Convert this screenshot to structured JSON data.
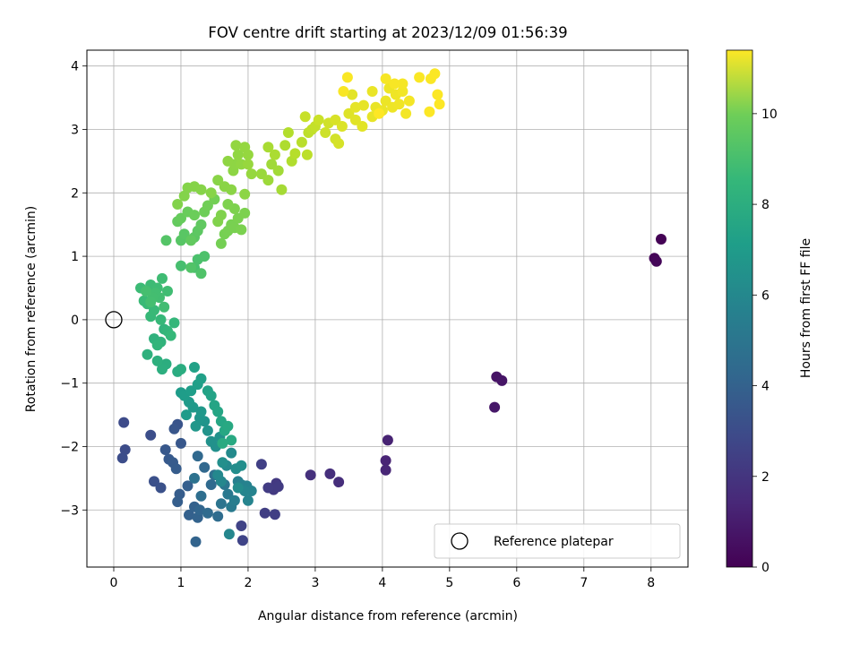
{
  "chart_data": {
    "type": "scatter",
    "title": "FOV centre drift starting at 2023/12/09 01:56:39",
    "xlabel": "Angular distance from reference (arcmin)",
    "ylabel": "Rotation from reference (arcmin)",
    "xlim": [
      -0.4,
      8.55
    ],
    "ylim": [
      -3.9,
      4.25
    ],
    "x_ticks": [
      0,
      1,
      2,
      3,
      4,
      5,
      6,
      7,
      8
    ],
    "y_ticks": [
      -3,
      -2,
      -1,
      0,
      1,
      2,
      3,
      4
    ],
    "grid": true,
    "legend": {
      "location": "lower-right",
      "entries": [
        "Reference platepar"
      ]
    },
    "colorbar": {
      "label": "Hours from first FF file",
      "colormap": "viridis",
      "range": [
        0,
        11.4
      ],
      "ticks": [
        0,
        2,
        4,
        6,
        8,
        10
      ]
    },
    "reference_point": {
      "x": 0,
      "y": 0
    },
    "points": [
      [
        8.15,
        1.27,
        0.05
      ],
      [
        8.05,
        0.97,
        0.1
      ],
      [
        8.08,
        0.92,
        0.15
      ],
      [
        5.7,
        -0.9,
        0.6
      ],
      [
        5.78,
        -0.96,
        0.65
      ],
      [
        5.67,
        -1.38,
        0.7
      ],
      [
        4.08,
        -1.9,
        1.1
      ],
      [
        4.05,
        -2.22,
        1.15
      ],
      [
        4.05,
        -2.37,
        1.2
      ],
      [
        3.35,
        -2.56,
        1.5
      ],
      [
        3.22,
        -2.43,
        1.55
      ],
      [
        2.93,
        -2.45,
        1.6
      ],
      [
        2.42,
        -2.58,
        1.9
      ],
      [
        2.38,
        -2.68,
        1.95
      ],
      [
        2.45,
        -2.63,
        2.0
      ],
      [
        2.3,
        -2.65,
        2.05
      ],
      [
        2.25,
        -3.05,
        2.1
      ],
      [
        2.4,
        -3.07,
        2.15
      ],
      [
        2.2,
        -2.28,
        2.2
      ],
      [
        1.9,
        -3.25,
        2.3
      ],
      [
        1.92,
        -3.48,
        2.35
      ],
      [
        0.15,
        -1.62,
        2.6
      ],
      [
        0.17,
        -2.05,
        2.65
      ],
      [
        0.13,
        -2.18,
        2.7
      ],
      [
        0.55,
        -1.82,
        2.75
      ],
      [
        0.6,
        -2.55,
        2.8
      ],
      [
        0.7,
        -2.65,
        2.85
      ],
      [
        0.95,
        -1.65,
        3.0
      ],
      [
        0.9,
        -1.72,
        3.05
      ],
      [
        1.0,
        -1.95,
        3.1
      ],
      [
        0.77,
        -2.05,
        3.15
      ],
      [
        0.82,
        -2.2,
        3.2
      ],
      [
        0.88,
        -2.25,
        3.25
      ],
      [
        0.93,
        -2.35,
        3.3
      ],
      [
        0.98,
        -2.75,
        3.35
      ],
      [
        0.95,
        -2.87,
        3.4
      ],
      [
        1.1,
        -2.62,
        3.45
      ],
      [
        1.12,
        -3.08,
        3.5
      ],
      [
        1.2,
        -2.95,
        3.55
      ],
      [
        1.25,
        -3.12,
        3.6
      ],
      [
        1.22,
        -3.5,
        3.65
      ],
      [
        1.28,
        -3.0,
        3.7
      ],
      [
        1.35,
        -2.33,
        3.8
      ],
      [
        1.25,
        -2.15,
        3.85
      ],
      [
        1.45,
        -2.6,
        3.9
      ],
      [
        1.4,
        -3.05,
        3.95
      ],
      [
        1.55,
        -3.1,
        4.0
      ],
      [
        1.3,
        -2.78,
        4.1
      ],
      [
        1.5,
        -2.45,
        4.2
      ],
      [
        1.2,
        -2.5,
        4.3
      ],
      [
        1.6,
        -2.9,
        4.4
      ],
      [
        1.65,
        -2.6,
        4.5
      ],
      [
        1.7,
        -2.75,
        4.6
      ],
      [
        1.75,
        -2.95,
        4.7
      ],
      [
        1.8,
        -2.85,
        4.8
      ],
      [
        1.85,
        -2.55,
        4.9
      ],
      [
        1.9,
        -2.6,
        5.0
      ],
      [
        1.98,
        -2.62,
        5.05
      ],
      [
        2.05,
        -2.7,
        5.1
      ],
      [
        2.0,
        -2.85,
        5.15
      ],
      [
        1.95,
        -2.7,
        5.2
      ],
      [
        1.72,
        -3.38,
        5.25
      ],
      [
        1.6,
        -2.55,
        5.3
      ],
      [
        1.55,
        -2.45,
        5.35
      ],
      [
        1.68,
        -2.3,
        5.4
      ],
      [
        1.75,
        -2.1,
        5.45
      ],
      [
        1.85,
        -2.65,
        5.5
      ],
      [
        1.82,
        -2.35,
        5.55
      ],
      [
        1.9,
        -2.3,
        5.6
      ],
      [
        1.62,
        -2.25,
        5.65
      ],
      [
        1.52,
        -2.0,
        5.7
      ],
      [
        1.45,
        -1.92,
        5.75
      ],
      [
        1.58,
        -1.85,
        5.8
      ],
      [
        1.4,
        -1.75,
        5.85
      ],
      [
        1.35,
        -1.6,
        5.9
      ],
      [
        1.28,
        -1.55,
        5.95
      ],
      [
        1.22,
        -1.68,
        6.0
      ],
      [
        1.3,
        -1.45,
        6.05
      ],
      [
        1.18,
        -1.38,
        6.1
      ],
      [
        1.12,
        -1.3,
        6.15
      ],
      [
        1.08,
        -1.5,
        6.2
      ],
      [
        1.0,
        -1.15,
        6.25
      ],
      [
        1.05,
        -1.2,
        6.3
      ],
      [
        1.15,
        -1.12,
        6.35
      ],
      [
        1.25,
        -1.02,
        6.4
      ],
      [
        1.3,
        -0.93,
        6.45
      ],
      [
        1.2,
        -0.75,
        6.5
      ],
      [
        1.4,
        -1.12,
        6.55
      ],
      [
        1.45,
        -1.2,
        6.6
      ],
      [
        1.5,
        -1.35,
        6.65
      ],
      [
        1.55,
        -1.45,
        6.7
      ],
      [
        1.6,
        -1.6,
        6.75
      ],
      [
        1.65,
        -1.75,
        6.8
      ],
      [
        1.7,
        -1.68,
        6.85
      ],
      [
        1.75,
        -1.9,
        6.9
      ],
      [
        1.62,
        -1.95,
        6.95
      ],
      [
        0.95,
        -0.82,
        7.0
      ],
      [
        1.0,
        -0.78,
        7.05
      ],
      [
        0.78,
        -0.7,
        7.1
      ],
      [
        0.72,
        -0.78,
        7.15
      ],
      [
        0.65,
        -0.65,
        7.2
      ],
      [
        0.5,
        -0.55,
        7.25
      ],
      [
        0.6,
        -0.3,
        7.3
      ],
      [
        0.7,
        -0.35,
        7.35
      ],
      [
        0.75,
        -0.15,
        7.4
      ],
      [
        0.65,
        -0.4,
        7.45
      ],
      [
        0.8,
        -0.18,
        7.5
      ],
      [
        0.9,
        -0.05,
        7.55
      ],
      [
        0.85,
        -0.25,
        7.6
      ],
      [
        0.7,
        0.0,
        7.62
      ],
      [
        0.55,
        0.05,
        7.65
      ],
      [
        0.6,
        0.15,
        7.68
      ],
      [
        0.5,
        0.25,
        7.7
      ],
      [
        0.45,
        0.3,
        7.72
      ],
      [
        0.4,
        0.5,
        7.75
      ],
      [
        0.55,
        0.55,
        7.78
      ],
      [
        0.65,
        0.5,
        7.8
      ],
      [
        0.72,
        0.65,
        7.82
      ],
      [
        0.8,
        0.45,
        7.85
      ],
      [
        0.75,
        0.2,
        7.88
      ],
      [
        0.68,
        0.35,
        7.9
      ],
      [
        0.62,
        0.42,
        7.92
      ],
      [
        0.58,
        0.35,
        7.94
      ],
      [
        0.55,
        0.28,
        7.96
      ],
      [
        0.48,
        0.45,
        7.98
      ],
      [
        1.0,
        0.85,
        8.0
      ],
      [
        1.2,
        0.82,
        8.05
      ],
      [
        1.25,
        0.95,
        8.1
      ],
      [
        1.35,
        1.0,
        8.15
      ],
      [
        1.3,
        0.73,
        8.2
      ],
      [
        1.15,
        0.82,
        8.25
      ],
      [
        0.78,
        1.25,
        8.3
      ],
      [
        1.0,
        1.25,
        8.35
      ],
      [
        1.05,
        1.35,
        8.4
      ],
      [
        1.2,
        1.3,
        8.45
      ],
      [
        1.25,
        1.4,
        8.5
      ],
      [
        1.3,
        1.5,
        8.55
      ],
      [
        1.15,
        1.25,
        8.6
      ],
      [
        0.95,
        1.55,
        8.65
      ],
      [
        1.0,
        1.6,
        8.7
      ],
      [
        1.1,
        1.7,
        8.75
      ],
      [
        1.2,
        1.65,
        8.8
      ],
      [
        1.35,
        1.7,
        8.85
      ],
      [
        1.4,
        1.8,
        8.9
      ],
      [
        1.5,
        1.9,
        8.95
      ],
      [
        1.6,
        1.2,
        8.98
      ],
      [
        1.65,
        1.35,
        9.0
      ],
      [
        1.7,
        1.4,
        9.02
      ],
      [
        1.75,
        1.5,
        9.04
      ],
      [
        1.8,
        1.45,
        9.06
      ],
      [
        1.85,
        1.6,
        9.08
      ],
      [
        1.9,
        1.42,
        9.1
      ],
      [
        1.95,
        1.68,
        9.12
      ],
      [
        1.8,
        1.75,
        9.14
      ],
      [
        1.7,
        1.82,
        9.16
      ],
      [
        1.6,
        1.65,
        9.18
      ],
      [
        1.55,
        1.55,
        9.2
      ],
      [
        0.95,
        1.82,
        9.22
      ],
      [
        1.05,
        1.95,
        9.24
      ],
      [
        1.1,
        2.08,
        9.26
      ],
      [
        1.2,
        2.1,
        9.28
      ],
      [
        1.3,
        2.05,
        9.3
      ],
      [
        1.45,
        2.0,
        9.32
      ],
      [
        1.55,
        2.2,
        9.34
      ],
      [
        1.65,
        2.1,
        9.36
      ],
      [
        1.75,
        2.05,
        9.38
      ],
      [
        1.95,
        1.98,
        9.4
      ],
      [
        1.78,
        2.35,
        9.42
      ],
      [
        1.8,
        2.45,
        9.44
      ],
      [
        1.7,
        2.5,
        9.46
      ],
      [
        1.85,
        2.6,
        9.48
      ],
      [
        1.9,
        2.45,
        9.5
      ],
      [
        1.82,
        2.75,
        9.52
      ],
      [
        1.95,
        2.72,
        9.54
      ],
      [
        2.0,
        2.6,
        9.56
      ],
      [
        2.05,
        2.3,
        9.58
      ],
      [
        2.0,
        2.45,
        9.6
      ],
      [
        2.2,
        2.3,
        9.65
      ],
      [
        2.3,
        2.2,
        9.7
      ],
      [
        2.35,
        2.45,
        9.75
      ],
      [
        2.45,
        2.35,
        9.8
      ],
      [
        2.5,
        2.05,
        9.85
      ],
      [
        2.3,
        2.72,
        9.9
      ],
      [
        2.4,
        2.6,
        9.95
      ],
      [
        2.55,
        2.75,
        10.0
      ],
      [
        2.65,
        2.5,
        10.05
      ],
      [
        2.6,
        2.95,
        10.1
      ],
      [
        2.7,
        2.62,
        10.15
      ],
      [
        2.8,
        2.8,
        10.2
      ],
      [
        2.88,
        2.6,
        10.25
      ],
      [
        2.9,
        2.95,
        10.3
      ],
      [
        2.95,
        3.0,
        10.35
      ],
      [
        3.0,
        3.05,
        10.4
      ],
      [
        2.85,
        3.2,
        10.45
      ],
      [
        3.05,
        3.15,
        10.5
      ],
      [
        3.15,
        2.95,
        10.55
      ],
      [
        3.2,
        3.1,
        10.6
      ],
      [
        3.3,
        2.85,
        10.65
      ],
      [
        3.35,
        2.78,
        10.7
      ],
      [
        3.3,
        3.15,
        10.75
      ],
      [
        3.4,
        3.05,
        10.8
      ],
      [
        3.5,
        3.25,
        10.85
      ],
      [
        3.6,
        3.15,
        10.9
      ],
      [
        3.7,
        3.05,
        10.92
      ],
      [
        3.55,
        3.55,
        10.95
      ],
      [
        3.6,
        3.35,
        10.97
      ],
      [
        3.72,
        3.38,
        11.0
      ],
      [
        3.85,
        3.2,
        11.02
      ],
      [
        3.9,
        3.35,
        11.04
      ],
      [
        3.85,
        3.6,
        11.06
      ],
      [
        4.0,
        3.3,
        11.08
      ],
      [
        4.05,
        3.45,
        11.1
      ],
      [
        4.1,
        3.65,
        11.12
      ],
      [
        4.15,
        3.35,
        11.14
      ],
      [
        4.2,
        3.55,
        11.16
      ],
      [
        4.25,
        3.4,
        11.18
      ],
      [
        4.3,
        3.6,
        11.2
      ],
      [
        4.35,
        3.25,
        11.22
      ],
      [
        4.4,
        3.45,
        11.24
      ],
      [
        4.3,
        3.72,
        11.26
      ],
      [
        4.05,
        3.8,
        11.28
      ],
      [
        4.18,
        3.72,
        11.3
      ],
      [
        3.42,
        3.6,
        11.32
      ],
      [
        3.48,
        3.82,
        11.33
      ],
      [
        4.55,
        3.82,
        11.34
      ],
      [
        4.72,
        3.8,
        11.35
      ],
      [
        4.78,
        3.88,
        11.36
      ],
      [
        4.82,
        3.55,
        11.37
      ],
      [
        4.85,
        3.4,
        11.38
      ],
      [
        4.7,
        3.28,
        11.39
      ],
      [
        3.95,
        3.25,
        11.4
      ]
    ]
  }
}
